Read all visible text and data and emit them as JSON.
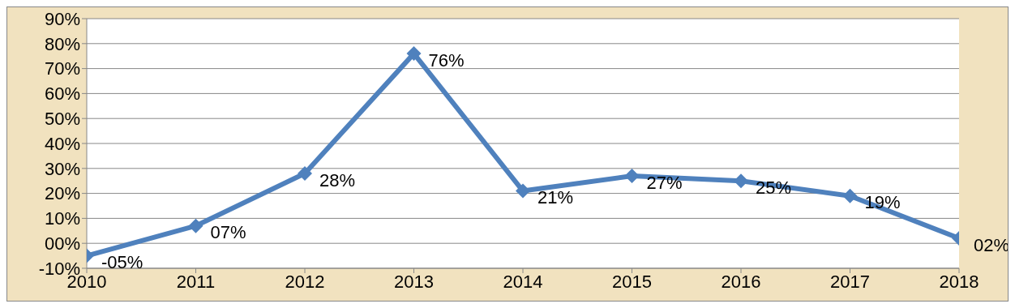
{
  "chart_data": {
    "type": "line",
    "x": [
      2010,
      2011,
      2012,
      2013,
      2014,
      2015,
      2016,
      2017,
      2018
    ],
    "series": [
      {
        "color": "#4f81bd",
        "values": [
          -5,
          7,
          28,
          76,
          21,
          27,
          25,
          19,
          2
        ],
        "value_labels": [
          "-05%",
          "07%",
          "28%",
          "76%",
          "21%",
          "27%",
          "25%",
          "19%",
          "02%"
        ]
      }
    ],
    "xlim": [
      2010,
      2018
    ],
    "xticks": [
      2010,
      2011,
      2012,
      2013,
      2014,
      2015,
      2016,
      2017,
      2018
    ],
    "ylim": [
      -10,
      90
    ],
    "yticks": [
      {
        "value": -10,
        "label": "-10%"
      },
      {
        "value": 0,
        "label": "00%"
      },
      {
        "value": 10,
        "label": "10%"
      },
      {
        "value": 20,
        "label": "20%"
      },
      {
        "value": 30,
        "label": "30%"
      },
      {
        "value": 40,
        "label": "40%"
      },
      {
        "value": 50,
        "label": "50%"
      },
      {
        "value": 60,
        "label": "60%"
      },
      {
        "value": 70,
        "label": "70%"
      },
      {
        "value": 80,
        "label": "80%"
      },
      {
        "value": 90,
        "label": "90%"
      }
    ],
    "grid": "y",
    "marker": "diamond",
    "line_style": "solid",
    "legend": false
  }
}
